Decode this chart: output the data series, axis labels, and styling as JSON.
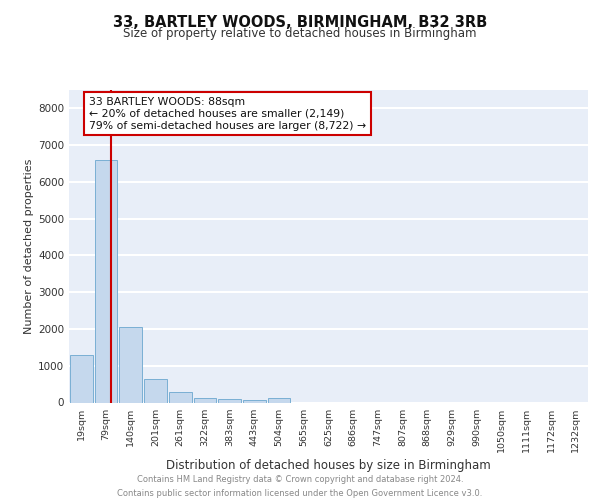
{
  "title": "33, BARTLEY WOODS, BIRMINGHAM, B32 3RB",
  "subtitle": "Size of property relative to detached houses in Birmingham",
  "xlabel": "Distribution of detached houses by size in Birmingham",
  "ylabel": "Number of detached properties",
  "bar_color": "#c5d8ed",
  "bar_edge_color": "#7aafd4",
  "categories": [
    "19sqm",
    "79sqm",
    "140sqm",
    "201sqm",
    "261sqm",
    "322sqm",
    "383sqm",
    "443sqm",
    "504sqm",
    "565sqm",
    "625sqm",
    "686sqm",
    "747sqm",
    "807sqm",
    "868sqm",
    "929sqm",
    "990sqm",
    "1050sqm",
    "1111sqm",
    "1172sqm",
    "1232sqm"
  ],
  "values": [
    1300,
    6600,
    2050,
    650,
    280,
    130,
    90,
    80,
    110,
    0,
    0,
    0,
    0,
    0,
    0,
    0,
    0,
    0,
    0,
    0,
    0
  ],
  "ylim": [
    0,
    8500
  ],
  "yticks": [
    0,
    1000,
    2000,
    3000,
    4000,
    5000,
    6000,
    7000,
    8000
  ],
  "property_label": "33 BARTLEY WOODS: 88sqm",
  "annotation_line1": "← 20% of detached houses are smaller (2,149)",
  "annotation_line2": "79% of semi-detached houses are larger (8,722) →",
  "red_line_x": 1.18,
  "bg_color": "#e8eef8",
  "grid_color": "#ffffff",
  "footer_line1": "Contains HM Land Registry data © Crown copyright and database right 2024.",
  "footer_line2": "Contains public sector information licensed under the Open Government Licence v3.0."
}
